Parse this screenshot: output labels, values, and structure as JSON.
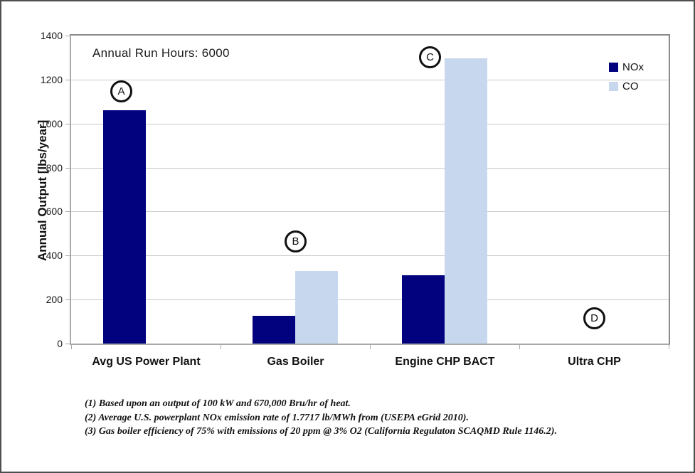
{
  "chart_data": {
    "type": "bar",
    "title": "",
    "annotation": "Annual Run Hours: 6000",
    "ylabel": "Annual Output [lbs/year]",
    "xlabel": "",
    "ylim": [
      0,
      1400
    ],
    "yticks": [
      0,
      200,
      400,
      600,
      800,
      1000,
      1200,
      1400
    ],
    "grid": true,
    "legend_position": "inside-top-right",
    "categories": [
      "Avg US Power Plant",
      "Gas Boiler",
      "Engine CHP BACT",
      "Ultra CHP"
    ],
    "series": [
      {
        "name": "NOx",
        "color": "#02027E",
        "values": [
          1060,
          125,
          310,
          0
        ]
      },
      {
        "name": "CO",
        "color": "#C7D7ED",
        "values": [
          0,
          330,
          1295,
          0
        ]
      }
    ],
    "point_labels": [
      {
        "letter": "A",
        "category": "Avg US Power Plant"
      },
      {
        "letter": "B",
        "category": "Gas Boiler"
      },
      {
        "letter": "C",
        "category": "Engine CHP BACT"
      },
      {
        "letter": "D",
        "category": "Ultra CHP"
      }
    ]
  },
  "footnotes": [
    "(1) Based upon an output of 100 kW and 670,000 Bru/hr of heat.",
    "(2) Average U.S. powerplant NOx emission rate  of 1.7717 lb/MWh from (USEPA eGrid 2010).",
    "(3) Gas boiler efficiency of 75% with  emissions of 20 ppm @ 3% O2 (California Regulaton SCAQMD Rule 1146.2)."
  ],
  "colors": {
    "nox": "#02027E",
    "co": "#C7D7ED",
    "gridline": "#C8C8C8",
    "axis": "#A9A9A9",
    "frame": "#8A8A8A"
  }
}
